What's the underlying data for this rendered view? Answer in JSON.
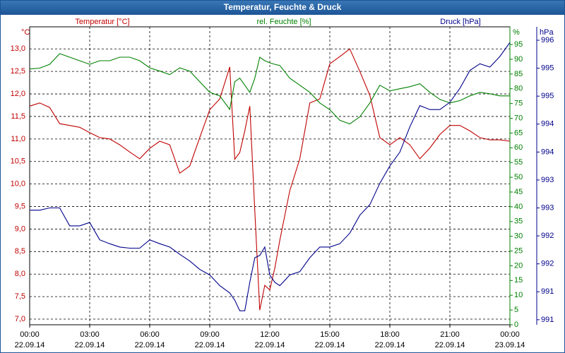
{
  "chart_data": {
    "type": "line",
    "title": "Temperatur, Feuchte & Druck",
    "ylabel": "°C",
    "y2label": "%",
    "y3label": "hPa",
    "x": [
      0,
      0.5,
      1,
      1.5,
      2,
      2.5,
      3,
      3.5,
      4,
      4.5,
      5,
      5.5,
      6,
      6.5,
      7,
      7.5,
      8,
      8.5,
      9,
      9.5,
      10,
      10.25,
      10.5,
      10.75,
      11,
      11.25,
      11.5,
      11.75,
      12,
      12.25,
      12.5,
      13,
      13.5,
      14,
      14.5,
      15,
      15.5,
      16,
      16.5,
      17,
      17.5,
      18,
      18.5,
      19,
      19.5,
      20,
      20.5,
      21,
      21.5,
      22,
      22.5,
      23,
      23.5,
      24
    ],
    "xlim": [
      0,
      24
    ],
    "xticks": [
      {
        "value": 0,
        "label": "00:00\n22.09.14"
      },
      {
        "value": 3,
        "label": "03:00\n22.09.14"
      },
      {
        "value": 6,
        "label": "06:00\n22.09.14"
      },
      {
        "value": 9,
        "label": "09:00\n22.09.14"
      },
      {
        "value": 12,
        "label": "12:00\n22.09.14"
      },
      {
        "value": 15,
        "label": "15:00\n22.09.14"
      },
      {
        "value": 18,
        "label": "18:00\n22.09.14"
      },
      {
        "value": 21,
        "label": "21:00\n22.09.14"
      },
      {
        "value": 24,
        "label": "00:00\n23.09.14"
      }
    ],
    "ylim": [
      6.875,
      13.49
    ],
    "yticks": [
      {
        "value": 7,
        "label": "7,0"
      },
      {
        "value": 7.5,
        "label": "7,5"
      },
      {
        "value": 8,
        "label": "8,0"
      },
      {
        "value": 8.5,
        "label": "8,5"
      },
      {
        "value": 9,
        "label": "9,0"
      },
      {
        "value": 9.5,
        "label": "9,5"
      },
      {
        "value": 10,
        "label": "10,0"
      },
      {
        "value": 10.5,
        "label": "10,5"
      },
      {
        "value": 11,
        "label": "11,0"
      },
      {
        "value": 11.5,
        "label": "11,5"
      },
      {
        "value": 12,
        "label": "12,0"
      },
      {
        "value": 12.5,
        "label": "12,5"
      },
      {
        "value": 13,
        "label": "13,0"
      }
    ],
    "y2lim": [
      0,
      101
    ],
    "y2ticks": [
      0,
      5,
      10,
      15,
      20,
      25,
      30,
      35,
      40,
      45,
      50,
      55,
      60,
      65,
      70,
      75,
      80,
      85,
      90,
      95
    ],
    "y3lim": [
      990.71,
      996.04
    ],
    "y3ticks": [
      {
        "value": 990.8,
        "label": "991"
      },
      {
        "value": 991.3,
        "label": "991"
      },
      {
        "value": 991.8,
        "label": "992"
      },
      {
        "value": 992.3,
        "label": "992"
      },
      {
        "value": 992.8,
        "label": "993"
      },
      {
        "value": 993.3,
        "label": "993"
      },
      {
        "value": 993.8,
        "label": "994"
      },
      {
        "value": 994.3,
        "label": "994"
      },
      {
        "value": 994.8,
        "label": "995"
      },
      {
        "value": 995.3,
        "label": "995"
      },
      {
        "value": 995.8,
        "label": "996"
      }
    ],
    "grid": true,
    "series": [
      {
        "name": "Temperatur [°C]",
        "color": "#c00000",
        "axis": "y",
        "values": [
          11.73,
          11.8,
          11.7,
          11.34,
          11.3,
          11.26,
          11.14,
          11.03,
          11.0,
          10.87,
          10.71,
          10.56,
          10.79,
          10.95,
          10.87,
          10.24,
          10.4,
          11.03,
          11.65,
          11.89,
          12.6,
          10.55,
          10.7,
          11.18,
          11.73,
          9.4,
          7.2,
          7.75,
          7.65,
          8.13,
          8.75,
          9.85,
          10.56,
          11.8,
          11.89,
          12.67,
          12.83,
          13.0,
          12.5,
          11.97,
          11.03,
          10.87,
          11.03,
          10.87,
          10.56,
          10.8,
          11.1,
          11.3,
          11.3,
          11.18,
          11.03,
          10.98,
          10.98,
          10.95
        ]
      },
      {
        "name": "rel. Feuchte [%]",
        "color": "#008000",
        "axis": "y2",
        "values": [
          86.7,
          87,
          88.3,
          91.9,
          90.7,
          89.5,
          88.3,
          89.5,
          89.5,
          90.7,
          90.7,
          89.5,
          87.1,
          86,
          84.8,
          87.1,
          86,
          82.4,
          78.8,
          77.6,
          73,
          82.4,
          83.6,
          81.2,
          78.8,
          83.6,
          90.7,
          89.5,
          88.8,
          88.3,
          87.9,
          83.6,
          81.2,
          78.8,
          75.2,
          72.9,
          69.3,
          68.1,
          70.5,
          75.2,
          81.2,
          79.3,
          80,
          80.7,
          81.7,
          78.8,
          76.4,
          75.2,
          76,
          77.6,
          78.8,
          78.3,
          77.6,
          77.6
        ]
      },
      {
        "name": "Druck [hPa]",
        "color": "#00008b",
        "axis": "y3",
        "values": [
          992.76,
          992.76,
          992.8,
          992.8,
          992.48,
          992.48,
          992.54,
          992.23,
          992.16,
          992.1,
          992.08,
          992.08,
          992.23,
          992.16,
          992.1,
          991.97,
          991.85,
          991.7,
          991.6,
          991.41,
          991.28,
          991.15,
          990.96,
          990.96,
          991.47,
          991.91,
          991.95,
          992.1,
          991.6,
          991.47,
          991.41,
          991.6,
          991.66,
          991.91,
          992.1,
          992.1,
          992.16,
          992.35,
          992.67,
          992.86,
          993.24,
          993.55,
          993.8,
          994.25,
          994.63,
          994.56,
          994.56,
          994.69,
          994.94,
          995.26,
          995.38,
          995.32,
          995.51,
          995.76
        ]
      }
    ]
  }
}
